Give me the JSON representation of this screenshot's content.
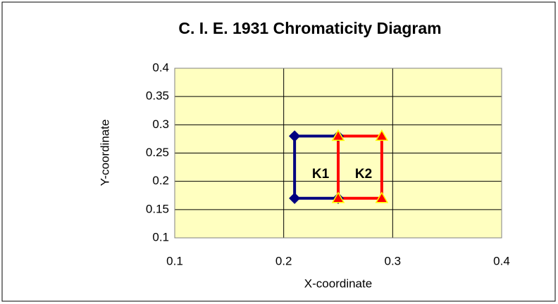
{
  "chart_data": {
    "type": "line",
    "title": "C. I. E. 1931 Chromaticity Diagram",
    "x_label": "X-coordinate",
    "y_label": "Y-coordinate",
    "xlim": [
      0.1,
      0.4
    ],
    "xticks": [
      0.1,
      0.2,
      0.3,
      0.4
    ],
    "ylim": [
      0.1,
      0.4
    ],
    "yticks": [
      0.1,
      0.15,
      0.2,
      0.25,
      0.3,
      0.35,
      0.4
    ],
    "grid": true,
    "background": "#ffffc0",
    "series": [
      {
        "name": "K1",
        "color": "#000080",
        "marker": "diamond",
        "marker_edge": "#000080",
        "x": [
          0.21,
          0.25,
          0.25,
          0.21,
          0.21
        ],
        "values": [
          0.28,
          0.28,
          0.17,
          0.17,
          0.28
        ]
      },
      {
        "name": "K2",
        "color": "#ff0000",
        "marker": "triangle",
        "marker_edge": "#ffff00",
        "x": [
          0.25,
          0.29,
          0.29,
          0.25,
          0.25
        ],
        "values": [
          0.28,
          0.28,
          0.17,
          0.17,
          0.28
        ]
      }
    ]
  }
}
